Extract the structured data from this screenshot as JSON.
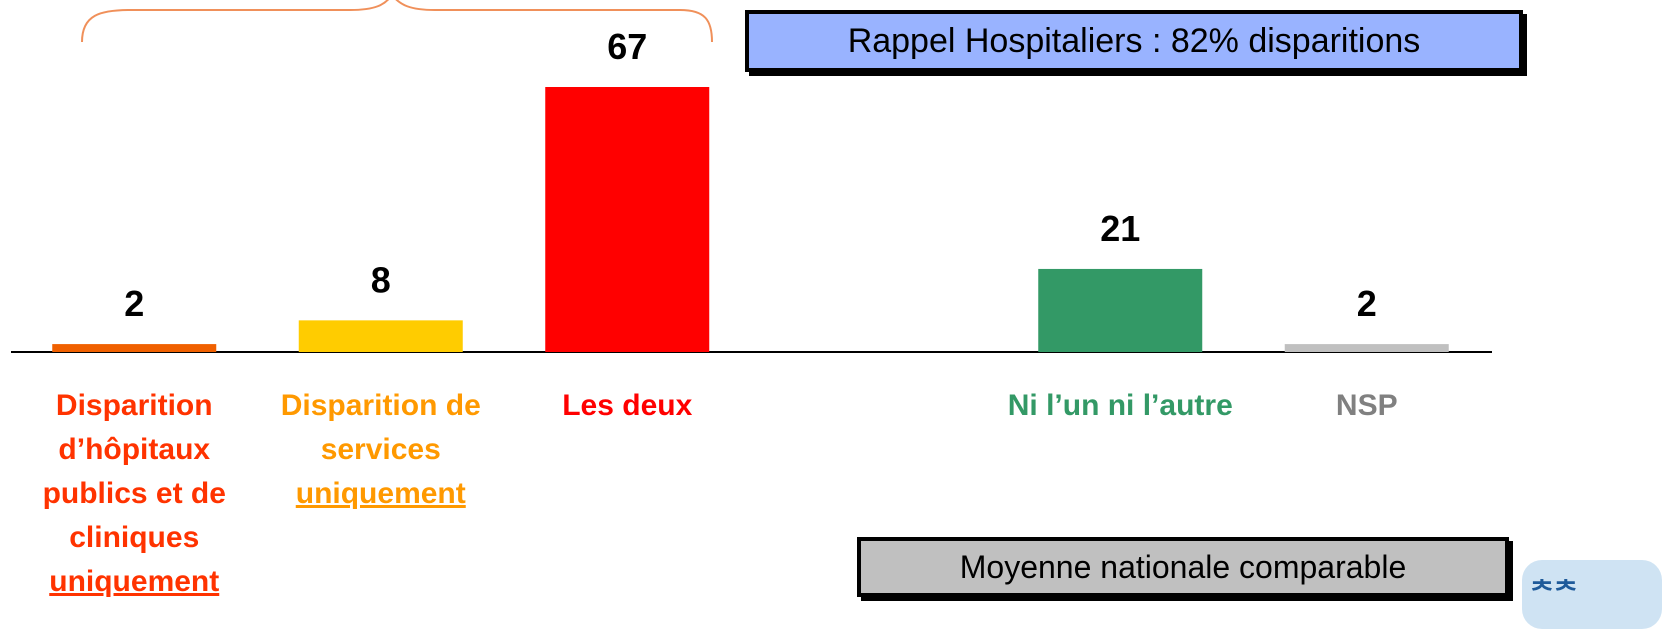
{
  "chart_data": {
    "type": "bar",
    "categories": [
      "Disparition d’hôpitaux publics et de cliniques uniquement",
      "Disparition de services uniquement",
      "Les deux",
      null,
      "Ni l’un ni l’autre",
      "NSP"
    ],
    "values": [
      2,
      8,
      67,
      null,
      21,
      2
    ],
    "colors": [
      "#f06000",
      "#ffcc00",
      "#ff0000",
      null,
      "#339966",
      "#c0c0c0"
    ],
    "label_colors": [
      "#ff3300",
      "#ff9900",
      "#ff0000",
      null,
      "#339966",
      "#808080"
    ],
    "annotations": [
      "Rappel Hospitaliers : 82% disparitions",
      "Moyenne nationale comparable"
    ]
  }
}
